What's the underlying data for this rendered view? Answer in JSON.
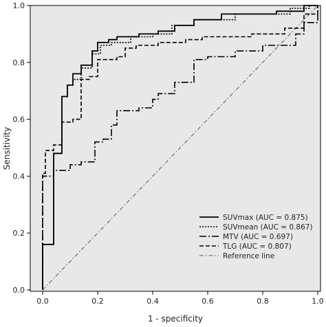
{
  "chart_data": {
    "type": "line",
    "xlabel": "1 - specificity",
    "ylabel": "Sensitivity",
    "xlim": [
      0,
      1
    ],
    "ylim": [
      0,
      1
    ],
    "xticks": [
      "0.0",
      "0.2",
      "0.4",
      "0.6",
      "0.8",
      "1.0"
    ],
    "yticks": [
      "0.0",
      "0.2",
      "0.4",
      "0.6",
      "0.8",
      "1.0"
    ],
    "grid": false,
    "legend_position": "bottom-right",
    "colors": {
      "background": "#e8e8e8",
      "line": "#000000",
      "reference": "#555555"
    },
    "series": [
      {
        "name": "SUVmax (AUC = 0.875)",
        "style": "solid",
        "points": [
          [
            0,
            0
          ],
          [
            0,
            0.16
          ],
          [
            0.04,
            0.16
          ],
          [
            0.04,
            0.48
          ],
          [
            0.07,
            0.48
          ],
          [
            0.07,
            0.68
          ],
          [
            0.09,
            0.68
          ],
          [
            0.09,
            0.72
          ],
          [
            0.11,
            0.72
          ],
          [
            0.11,
            0.76
          ],
          [
            0.14,
            0.76
          ],
          [
            0.14,
            0.79
          ],
          [
            0.18,
            0.79
          ],
          [
            0.18,
            0.84
          ],
          [
            0.2,
            0.84
          ],
          [
            0.2,
            0.87
          ],
          [
            0.24,
            0.87
          ],
          [
            0.24,
            0.88
          ],
          [
            0.27,
            0.88
          ],
          [
            0.27,
            0.89
          ],
          [
            0.35,
            0.89
          ],
          [
            0.35,
            0.9
          ],
          [
            0.42,
            0.9
          ],
          [
            0.42,
            0.91
          ],
          [
            0.48,
            0.91
          ],
          [
            0.48,
            0.93
          ],
          [
            0.55,
            0.93
          ],
          [
            0.55,
            0.95
          ],
          [
            0.65,
            0.95
          ],
          [
            0.65,
            0.97
          ],
          [
            0.85,
            0.97
          ],
          [
            0.85,
            0.98
          ],
          [
            0.95,
            0.98
          ],
          [
            0.95,
            1.0
          ],
          [
            1.0,
            1.0
          ]
        ]
      },
      {
        "name": "SUVmean (AUC = 0.867)",
        "style": "dotted",
        "points": [
          [
            0,
            0
          ],
          [
            0,
            0.16
          ],
          [
            0.04,
            0.16
          ],
          [
            0.04,
            0.48
          ],
          [
            0.07,
            0.48
          ],
          [
            0.07,
            0.68
          ],
          [
            0.09,
            0.68
          ],
          [
            0.09,
            0.72
          ],
          [
            0.11,
            0.72
          ],
          [
            0.11,
            0.74
          ],
          [
            0.14,
            0.74
          ],
          [
            0.14,
            0.78
          ],
          [
            0.18,
            0.78
          ],
          [
            0.18,
            0.83
          ],
          [
            0.21,
            0.83
          ],
          [
            0.21,
            0.86
          ],
          [
            0.25,
            0.86
          ],
          [
            0.25,
            0.87
          ],
          [
            0.32,
            0.87
          ],
          [
            0.32,
            0.89
          ],
          [
            0.4,
            0.89
          ],
          [
            0.4,
            0.9
          ],
          [
            0.47,
            0.9
          ],
          [
            0.47,
            0.93
          ],
          [
            0.55,
            0.93
          ],
          [
            0.55,
            0.95
          ],
          [
            0.7,
            0.95
          ],
          [
            0.7,
            0.97
          ],
          [
            0.9,
            0.97
          ],
          [
            0.9,
            0.99
          ],
          [
            0.97,
            0.99
          ],
          [
            0.97,
            1.0
          ],
          [
            1.0,
            1.0
          ]
        ]
      },
      {
        "name": "MTV (AUC = 0.697)",
        "style": "dash-dot",
        "points": [
          [
            0,
            0
          ],
          [
            0,
            0.4
          ],
          [
            0.04,
            0.4
          ],
          [
            0.04,
            0.42
          ],
          [
            0.1,
            0.42
          ],
          [
            0.1,
            0.44
          ],
          [
            0.14,
            0.44
          ],
          [
            0.14,
            0.45
          ],
          [
            0.19,
            0.45
          ],
          [
            0.19,
            0.52
          ],
          [
            0.22,
            0.52
          ],
          [
            0.22,
            0.53
          ],
          [
            0.25,
            0.53
          ],
          [
            0.25,
            0.58
          ],
          [
            0.27,
            0.58
          ],
          [
            0.27,
            0.63
          ],
          [
            0.35,
            0.63
          ],
          [
            0.35,
            0.64
          ],
          [
            0.4,
            0.64
          ],
          [
            0.4,
            0.67
          ],
          [
            0.42,
            0.67
          ],
          [
            0.42,
            0.69
          ],
          [
            0.48,
            0.69
          ],
          [
            0.48,
            0.73
          ],
          [
            0.55,
            0.73
          ],
          [
            0.55,
            0.81
          ],
          [
            0.6,
            0.81
          ],
          [
            0.6,
            0.82
          ],
          [
            0.7,
            0.82
          ],
          [
            0.7,
            0.84
          ],
          [
            0.8,
            0.84
          ],
          [
            0.8,
            0.86
          ],
          [
            0.92,
            0.86
          ],
          [
            0.92,
            0.9
          ],
          [
            0.95,
            0.9
          ],
          [
            0.95,
            0.94
          ],
          [
            1.0,
            0.94
          ],
          [
            1.0,
            1.0
          ]
        ]
      },
      {
        "name": "TLG (AUC = 0.807)",
        "style": "dashed",
        "points": [
          [
            0,
            0
          ],
          [
            0,
            0.41
          ],
          [
            0.01,
            0.41
          ],
          [
            0.01,
            0.49
          ],
          [
            0.04,
            0.49
          ],
          [
            0.04,
            0.51
          ],
          [
            0.07,
            0.51
          ],
          [
            0.07,
            0.59
          ],
          [
            0.11,
            0.59
          ],
          [
            0.11,
            0.6
          ],
          [
            0.14,
            0.6
          ],
          [
            0.14,
            0.74
          ],
          [
            0.17,
            0.74
          ],
          [
            0.17,
            0.75
          ],
          [
            0.2,
            0.75
          ],
          [
            0.2,
            0.81
          ],
          [
            0.27,
            0.81
          ],
          [
            0.27,
            0.82
          ],
          [
            0.3,
            0.82
          ],
          [
            0.3,
            0.85
          ],
          [
            0.34,
            0.85
          ],
          [
            0.34,
            0.86
          ],
          [
            0.42,
            0.86
          ],
          [
            0.42,
            0.87
          ],
          [
            0.52,
            0.87
          ],
          [
            0.52,
            0.88
          ],
          [
            0.58,
            0.88
          ],
          [
            0.58,
            0.89
          ],
          [
            0.76,
            0.89
          ],
          [
            0.76,
            0.9
          ],
          [
            0.88,
            0.9
          ],
          [
            0.88,
            0.92
          ],
          [
            0.95,
            0.92
          ],
          [
            0.95,
            0.97
          ],
          [
            1.0,
            0.97
          ],
          [
            1.0,
            1.0
          ]
        ]
      },
      {
        "name": "Reference line",
        "style": "reference",
        "points": [
          [
            0,
            0
          ],
          [
            1,
            1
          ]
        ]
      }
    ]
  }
}
